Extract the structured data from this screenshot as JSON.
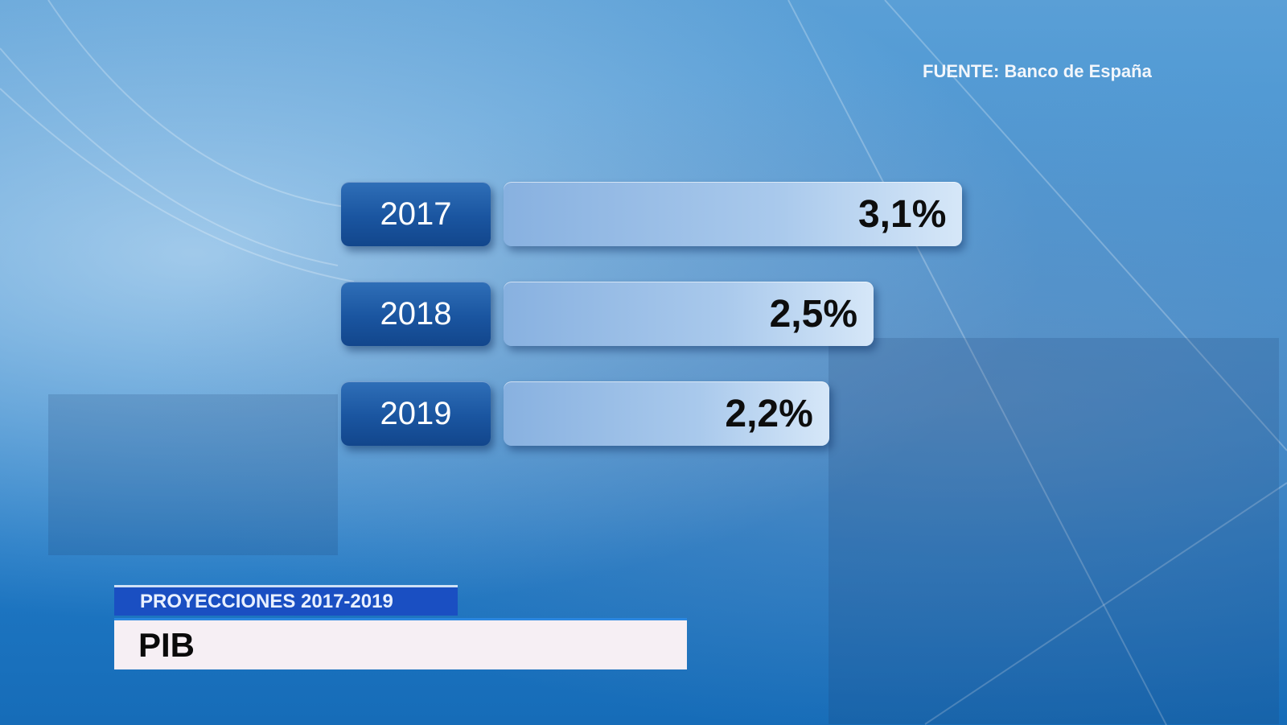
{
  "source": "FUENTE: Banco de España",
  "subtitle": "PROYECCIONES 2017-2019",
  "title": "PIB",
  "chart_data": {
    "type": "bar",
    "orientation": "horizontal",
    "categories": [
      "2017",
      "2018",
      "2019"
    ],
    "values": [
      3.1,
      2.5,
      2.2
    ],
    "value_labels": [
      "3,1%",
      "2,5%",
      "2,2%"
    ],
    "unit": "%",
    "title": "PIB",
    "subtitle": "PROYECCIONES 2017-2019",
    "xlim": [
      0,
      3.1
    ],
    "grid": false,
    "colors": {
      "year_box": "#1a55a0",
      "bar": "#a9c9ec",
      "value_text": "#0d0d0d"
    }
  }
}
